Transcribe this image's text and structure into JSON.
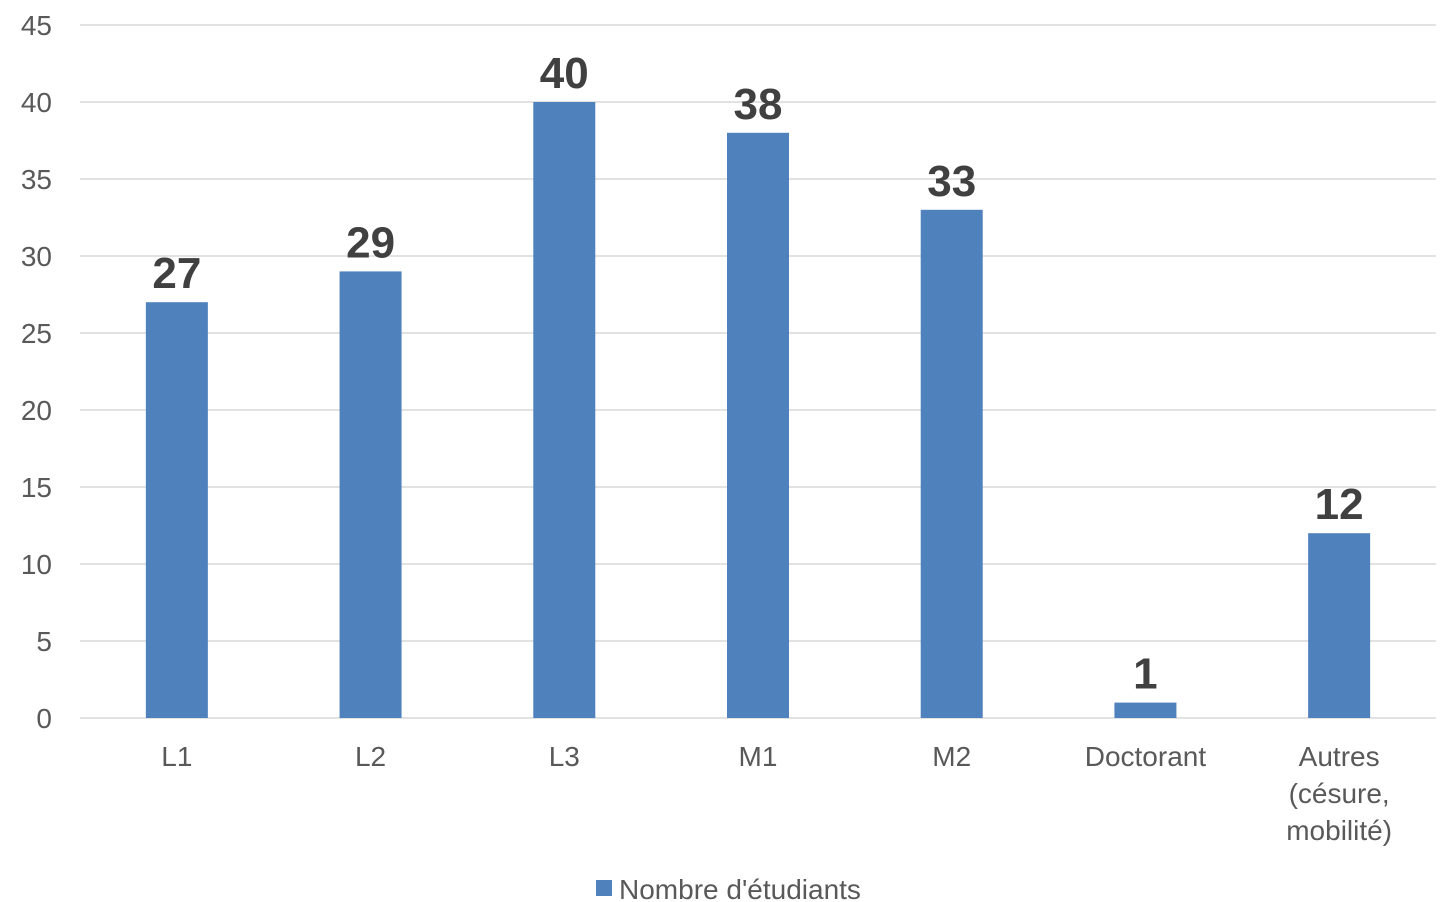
{
  "chart_data": {
    "type": "bar",
    "categories": [
      [
        "L1"
      ],
      [
        "L2"
      ],
      [
        "L3"
      ],
      [
        "M1"
      ],
      [
        "M2"
      ],
      [
        "Doctorant"
      ],
      [
        "Autres",
        "(césure,",
        "mobilité)"
      ]
    ],
    "series": [
      {
        "name": "Nombre d'étudiants",
        "values": [
          27,
          29,
          40,
          38,
          33,
          1,
          12
        ],
        "color": "#4f81bd"
      }
    ],
    "ylim": [
      0,
      45
    ],
    "yticks": [
      0,
      5,
      10,
      15,
      20,
      25,
      30,
      35,
      40,
      45
    ],
    "grid": true,
    "data_labels": true,
    "legend_position": "bottom"
  }
}
